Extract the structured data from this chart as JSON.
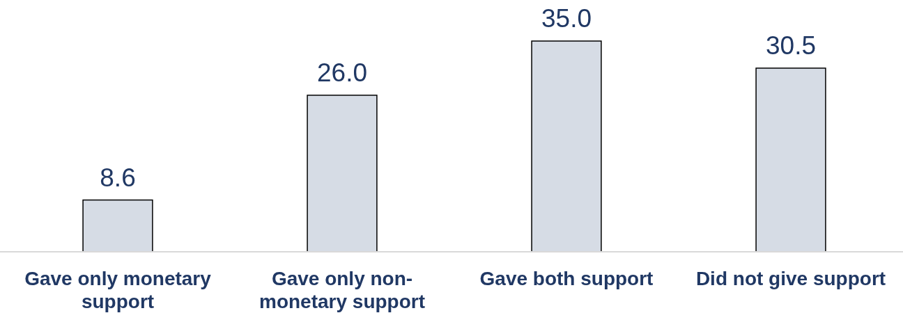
{
  "chart_data": {
    "type": "bar",
    "categories": [
      "Gave only monetary support",
      "Gave only non-monetary support",
      "Gave both support",
      "Did not give support"
    ],
    "values": [
      8.6,
      26.0,
      35.0,
      30.5
    ],
    "value_labels": [
      "8.6",
      "26.0",
      "35.0",
      "30.5"
    ],
    "color": "#d6dce5"
  }
}
